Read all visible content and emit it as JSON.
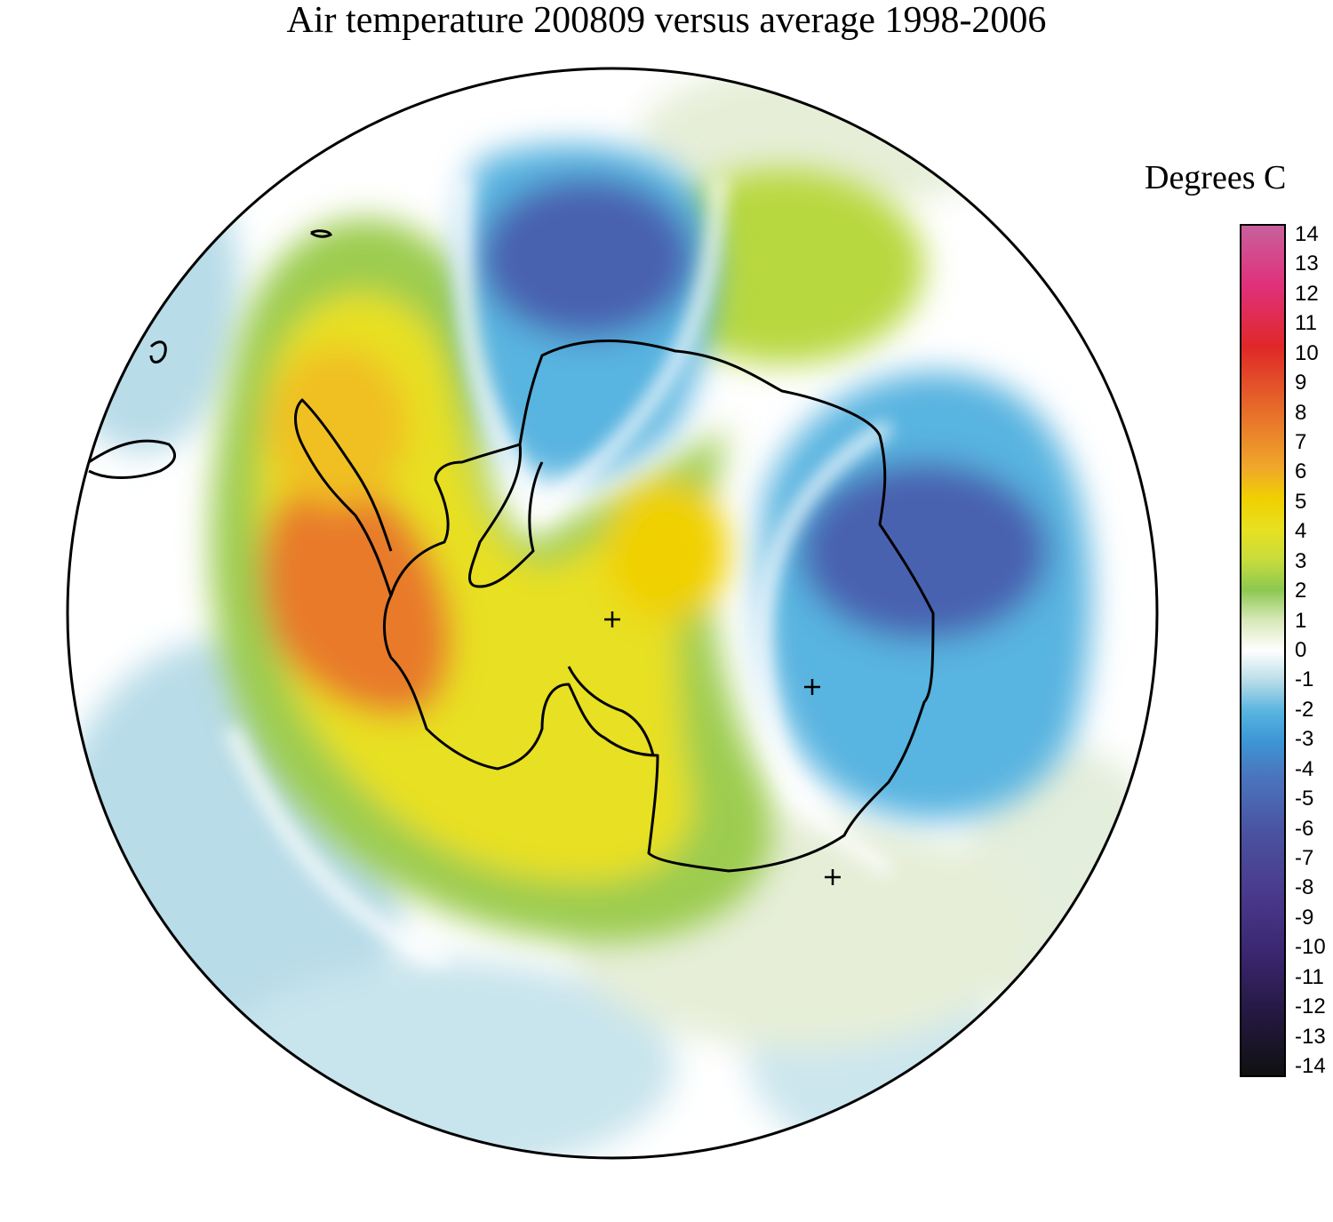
{
  "title": "Air temperature 200809 versus average 1998-2006",
  "legend": {
    "unit_label": "Degrees C",
    "ticks": [
      "14",
      "13",
      "12",
      "11",
      "10",
      "9",
      "8",
      "7",
      "6",
      "5",
      "4",
      "3",
      "2",
      "1",
      "0",
      "-1",
      "-2",
      "-3",
      "-4",
      "-5",
      "-6",
      "-7",
      "-8",
      "-9",
      "-10",
      "-11",
      "-12",
      "-13",
      "-14"
    ],
    "range": [
      -14,
      14
    ],
    "color_stops": [
      {
        "v": 14,
        "c": "#c8609c"
      },
      {
        "v": 12,
        "c": "#e0307a"
      },
      {
        "v": 10,
        "c": "#e02828"
      },
      {
        "v": 8,
        "c": "#e66a2a"
      },
      {
        "v": 6,
        "c": "#f0a82a"
      },
      {
        "v": 5,
        "c": "#f0d000"
      },
      {
        "v": 4,
        "c": "#e8e020"
      },
      {
        "v": 3,
        "c": "#c8dc3c"
      },
      {
        "v": 2,
        "c": "#8cc850"
      },
      {
        "v": 1,
        "c": "#d8e8b8"
      },
      {
        "v": 0,
        "c": "#ffffff"
      },
      {
        "v": -1,
        "c": "#b8dce8"
      },
      {
        "v": -2,
        "c": "#58b4e0"
      },
      {
        "v": -3,
        "c": "#3c96d6"
      },
      {
        "v": -4,
        "c": "#4a78c0"
      },
      {
        "v": -6,
        "c": "#4a52a0"
      },
      {
        "v": -8,
        "c": "#4a3a8c"
      },
      {
        "v": -10,
        "c": "#3a2670"
      },
      {
        "v": -12,
        "c": "#241840"
      },
      {
        "v": -14,
        "c": "#101010"
      }
    ]
  },
  "colors": {
    "outline": "#000000",
    "background": "#ffffff"
  }
}
